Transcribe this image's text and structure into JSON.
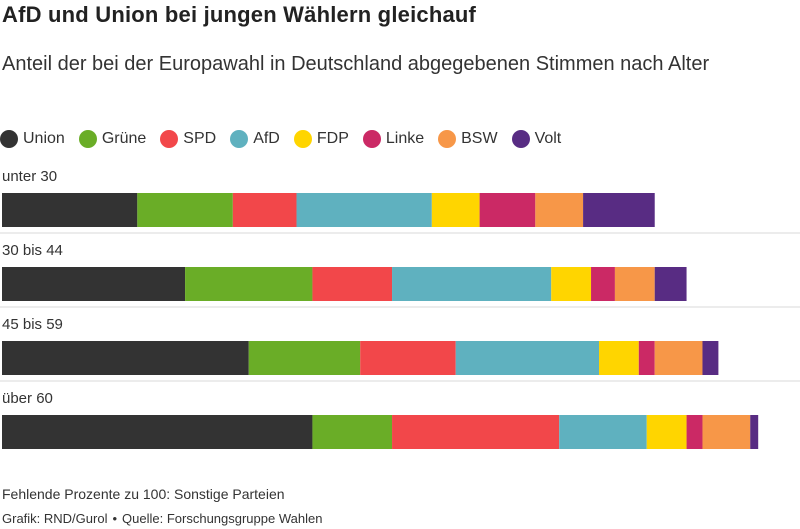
{
  "title": "AfD und Union bei jungen Wählern gleichauf",
  "subtitle": "Anteil der bei der Europawahl in Deutschland abgegebenen Stimmen nach Alter",
  "footer": {
    "note": "Fehlende Prozente zu 100: Sonstige Parteien",
    "credit": "Grafik: RND/Gurol",
    "separator": "•",
    "source": "Quelle: Forschungsgruppe Wahlen"
  },
  "colors": {
    "Union": "#333333",
    "Grüne": "#6aad27",
    "SPD": "#f2474a",
    "AfD": "#5fb1bf",
    "FDP": "#ffd500",
    "Linke": "#cb2965",
    "BSW": "#f79748",
    "Volt": "#582c83"
  },
  "chart_data": {
    "type": "bar",
    "orientation": "horizontal",
    "stacked": true,
    "xlim": [
      0,
      100
    ],
    "series_order": [
      "Union",
      "Grüne",
      "SPD",
      "AfD",
      "FDP",
      "Linke",
      "BSW",
      "Volt"
    ],
    "categories": [
      "unter 30",
      "30 bis 44",
      "45 bis 59",
      "über 60"
    ],
    "series": [
      {
        "name": "Union",
        "values": [
          17,
          23,
          31,
          39
        ]
      },
      {
        "name": "Grüne",
        "values": [
          12,
          16,
          14,
          10
        ]
      },
      {
        "name": "SPD",
        "values": [
          8,
          10,
          12,
          21
        ]
      },
      {
        "name": "AfD",
        "values": [
          17,
          20,
          18,
          11
        ]
      },
      {
        "name": "FDP",
        "values": [
          6,
          5,
          5,
          5
        ]
      },
      {
        "name": "Linke",
        "values": [
          7,
          3,
          2,
          2
        ]
      },
      {
        "name": "BSW",
        "values": [
          6,
          5,
          6,
          6
        ]
      },
      {
        "name": "Volt",
        "values": [
          9,
          4,
          2,
          1
        ]
      }
    ]
  }
}
